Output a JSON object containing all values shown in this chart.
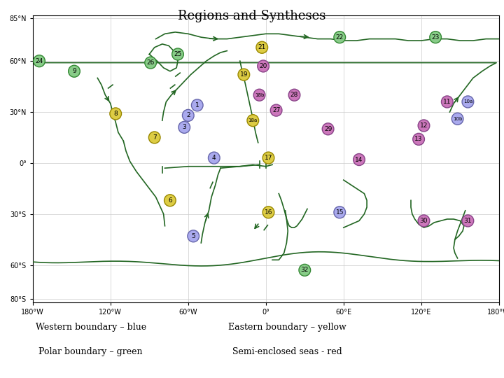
{
  "title": "Regions and Syntheses",
  "title_fontsize": 13,
  "legend_lines": [
    [
      "Western boundary – blue",
      "Eastern boundary – yellow"
    ],
    [
      "Polar boundary – green",
      "Semi-enclosed seas - red"
    ]
  ],
  "xlim": [
    -180,
    180
  ],
  "ylim": [
    -82,
    87
  ],
  "xticks": [
    -180,
    -120,
    -60,
    0,
    60,
    120,
    180
  ],
  "xtick_labels": [
    "180°W",
    "120°W",
    "60°W",
    "0°",
    "60°E",
    "120°E",
    "180°W"
  ],
  "yticks": [
    -80,
    -60,
    -30,
    0,
    30,
    60,
    85
  ],
  "ytick_labels": [
    "80°S",
    "60°S",
    "30°S",
    "0°",
    "30°N",
    "60°N",
    "85°N"
  ],
  "land_color": "#aaaaaa",
  "ocean_color": "#ffffff",
  "grid_color": "#cccccc",
  "boundary_color": "#226622",
  "boundary_linewidth": 1.2,
  "regions": [
    {
      "num": "1",
      "lon": -53,
      "lat": 34,
      "color": "#aaaaee",
      "edge": "#6666aa"
    },
    {
      "num": "2",
      "lon": -60,
      "lat": 28,
      "color": "#aaaaee",
      "edge": "#6666aa"
    },
    {
      "num": "3",
      "lon": -63,
      "lat": 21,
      "color": "#aaaaee",
      "edge": "#6666aa"
    },
    {
      "num": "4",
      "lon": -40,
      "lat": 3,
      "color": "#aaaaee",
      "edge": "#6666aa"
    },
    {
      "num": "5",
      "lon": -56,
      "lat": -43,
      "color": "#aaaaee",
      "edge": "#6666aa"
    },
    {
      "num": "6",
      "lon": -74,
      "lat": -22,
      "color": "#ddcc44",
      "edge": "#998800"
    },
    {
      "num": "7",
      "lon": -86,
      "lat": 15,
      "color": "#ddcc44",
      "edge": "#998800"
    },
    {
      "num": "8",
      "lon": -116,
      "lat": 29,
      "color": "#ddcc44",
      "edge": "#998800"
    },
    {
      "num": "9",
      "lon": -148,
      "lat": 54,
      "color": "#88cc88",
      "edge": "#338833"
    },
    {
      "num": "10a",
      "lon": 156,
      "lat": 36,
      "color": "#aaaaee",
      "edge": "#6666aa"
    },
    {
      "num": "10b",
      "lon": 148,
      "lat": 26,
      "color": "#aaaaee",
      "edge": "#6666aa"
    },
    {
      "num": "11",
      "lon": 140,
      "lat": 36,
      "color": "#cc77bb",
      "edge": "#884488"
    },
    {
      "num": "12",
      "lon": 122,
      "lat": 22,
      "color": "#cc77bb",
      "edge": "#884488"
    },
    {
      "num": "13",
      "lon": 118,
      "lat": 14,
      "color": "#cc77bb",
      "edge": "#884488"
    },
    {
      "num": "14",
      "lon": 72,
      "lat": 2,
      "color": "#cc77bb",
      "edge": "#884488"
    },
    {
      "num": "15",
      "lon": 57,
      "lat": -29,
      "color": "#aaaaee",
      "edge": "#6666aa"
    },
    {
      "num": "16",
      "lon": 2,
      "lat": -29,
      "color": "#ddcc44",
      "edge": "#998800"
    },
    {
      "num": "17",
      "lon": 2,
      "lat": 3,
      "color": "#ddcc44",
      "edge": "#998800"
    },
    {
      "num": "18a",
      "lon": -10,
      "lat": 25,
      "color": "#ddcc44",
      "edge": "#998800"
    },
    {
      "num": "18b",
      "lon": -5,
      "lat": 40,
      "color": "#cc77bb",
      "edge": "#884488"
    },
    {
      "num": "19",
      "lon": -17,
      "lat": 52,
      "color": "#ddcc44",
      "edge": "#998800"
    },
    {
      "num": "20",
      "lon": -2,
      "lat": 57,
      "color": "#cc77bb",
      "edge": "#884488"
    },
    {
      "num": "21",
      "lon": -3,
      "lat": 68,
      "color": "#ddcc44",
      "edge": "#998800"
    },
    {
      "num": "22",
      "lon": 57,
      "lat": 74,
      "color": "#88cc88",
      "edge": "#338833"
    },
    {
      "num": "23",
      "lon": 131,
      "lat": 74,
      "color": "#88cc88",
      "edge": "#338833"
    },
    {
      "num": "24",
      "lon": -175,
      "lat": 60,
      "color": "#88cc88",
      "edge": "#338833"
    },
    {
      "num": "25",
      "lon": -68,
      "lat": 64,
      "color": "#88cc88",
      "edge": "#338833"
    },
    {
      "num": "26",
      "lon": -89,
      "lat": 59,
      "color": "#88cc88",
      "edge": "#338833"
    },
    {
      "num": "27",
      "lon": 8,
      "lat": 31,
      "color": "#cc77bb",
      "edge": "#884488"
    },
    {
      "num": "28",
      "lon": 22,
      "lat": 40,
      "color": "#cc77bb",
      "edge": "#884488"
    },
    {
      "num": "29",
      "lon": 48,
      "lat": 20,
      "color": "#cc77bb",
      "edge": "#884488"
    },
    {
      "num": "30",
      "lon": 122,
      "lat": -34,
      "color": "#cc77bb",
      "edge": "#884488"
    },
    {
      "num": "31",
      "lon": 156,
      "lat": -34,
      "color": "#cc77bb",
      "edge": "#884488"
    },
    {
      "num": "32",
      "lon": 30,
      "lat": -63,
      "color": "#88cc88",
      "edge": "#338833"
    }
  ]
}
